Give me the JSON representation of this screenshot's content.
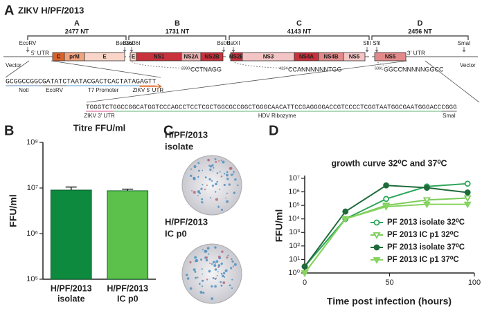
{
  "panel_a": {
    "label": "A",
    "title": "ZIKV H/PF/2013",
    "fragments": [
      {
        "name": "A",
        "length": "2477 NT"
      },
      {
        "name": "B",
        "length": "1731 NT"
      },
      {
        "name": "C",
        "length": "4143 NT"
      },
      {
        "name": "D",
        "length": "2456 NT"
      }
    ],
    "sites": [
      "EcoRV",
      "Bsu36I",
      "Bsu36I",
      "BstXI",
      "BstXI",
      "SfiI",
      "SfiI",
      "SmaI"
    ],
    "vector_labels": [
      "Vector",
      "Vector"
    ],
    "genes": [
      "5' UTR",
      "C",
      "prM",
      "E",
      "E",
      "NS1",
      "NS2A",
      "NS2B",
      "NS2B",
      "NS3",
      "NS4A",
      "NS4B",
      "NS5",
      "NS5",
      "3' UTR"
    ],
    "site_sequences": [
      {
        "position": "2390",
        "sequence": "CCTNAGG"
      },
      {
        "position": "4124",
        "sequence": "CCANNNNNNTGG"
      },
      {
        "position": "6361",
        "sequence": "GGCCNNNNNGGCC"
      }
    ],
    "five_prime": [
      {
        "sequence": "GCGGCCGGC",
        "label": "NotI"
      },
      {
        "sequence": "GATATC",
        "label": "EcoRV"
      },
      {
        "sequence": "TAATACGACTCACTATAG",
        "label": "T7 Promoter"
      },
      {
        "sequence": "AGTT",
        "label": "ZIKV 5' UTR"
      }
    ],
    "three_prime": [
      {
        "sequence": "TGGGTCT",
        "label": "ZIKV 3' UTR"
      },
      {
        "sequence": "GGCCGGCATGGTCCCAGCCTCCTCGCTGGCGCCGGCTGGGCAACATTCCGAGGGGACCGTCCCCTCGGTAATGGCGAATGGGACC",
        "label": "HDV Ribozyme"
      },
      {
        "sequence": "CGGG",
        "label": "SmaI"
      }
    ]
  },
  "panel_b_label": "B",
  "panel_c": {
    "label": "C",
    "wells": [
      [
        "H/PF/2013",
        "isolate"
      ],
      [
        "H/PF/2013",
        "IC  p0"
      ]
    ]
  },
  "panel_d_label": "D",
  "chart_data": [
    {
      "type": "bar",
      "title": "Titre FFU/ml",
      "ylabel": "FFU/ml",
      "categories": [
        [
          "H/PF/2013",
          "isolate"
        ],
        [
          "H/PF/2013",
          "IC  p0"
        ]
      ],
      "values": [
        9000000,
        8700000
      ],
      "errors": [
        1500000,
        700000
      ],
      "colors": [
        "#0e8a3f",
        "#5cc14b"
      ],
      "log_scale": true,
      "ylim": [
        100000,
        100000000
      ],
      "yticks": [
        {
          "value": 100000,
          "label": "10⁵"
        },
        {
          "value": 1000000,
          "label": "10⁶"
        },
        {
          "value": 10000000,
          "label": "10⁷"
        },
        {
          "value": 100000000,
          "label": "10⁸"
        }
      ]
    },
    {
      "type": "line",
      "title": "growth curve 32⁰C  and 37⁰C",
      "xlabel": "Time post infection (hours)",
      "ylabel": "FFU/ml",
      "x": [
        0,
        24,
        48,
        72,
        96
      ],
      "xlim": [
        0,
        100
      ],
      "xticks": [
        0,
        50,
        100
      ],
      "log_scale": true,
      "ylim": [
        1,
        10000000
      ],
      "yticks": [
        {
          "value": 1,
          "label": "10⁰"
        },
        {
          "value": 10,
          "label": "10¹"
        },
        {
          "value": 100,
          "label": "10²"
        },
        {
          "value": 1000,
          "label": "10³"
        },
        {
          "value": 10000,
          "label": "10⁴"
        },
        {
          "value": 100000,
          "label": "10⁵"
        },
        {
          "value": 1000000,
          "label": "10⁶"
        },
        {
          "value": 10000000,
          "label": "10⁷"
        }
      ],
      "legend": "lower right",
      "series": [
        {
          "name": "PF 2013 isolate 32⁰C",
          "color": "#2ea55a",
          "marker": "circle-open",
          "values": [
            3,
            10000,
            300000,
            2500000,
            4000000
          ]
        },
        {
          "name": "PF 2013 IC p1  32⁰C",
          "color": "#7ccc5a",
          "marker": "triangle-open",
          "values": [
            1,
            10000,
            100000,
            250000,
            350000
          ]
        },
        {
          "name": "PF 2013 isolate 37⁰C",
          "color": "#1f6b3a",
          "marker": "circle",
          "values": [
            3,
            35000,
            3000000,
            2000000,
            900000
          ]
        },
        {
          "name": "PF 2013 IC p1  37⁰C",
          "color": "#86d35e",
          "marker": "triangle",
          "values": [
            1,
            10000,
            80000,
            120000,
            120000
          ]
        }
      ]
    }
  ]
}
